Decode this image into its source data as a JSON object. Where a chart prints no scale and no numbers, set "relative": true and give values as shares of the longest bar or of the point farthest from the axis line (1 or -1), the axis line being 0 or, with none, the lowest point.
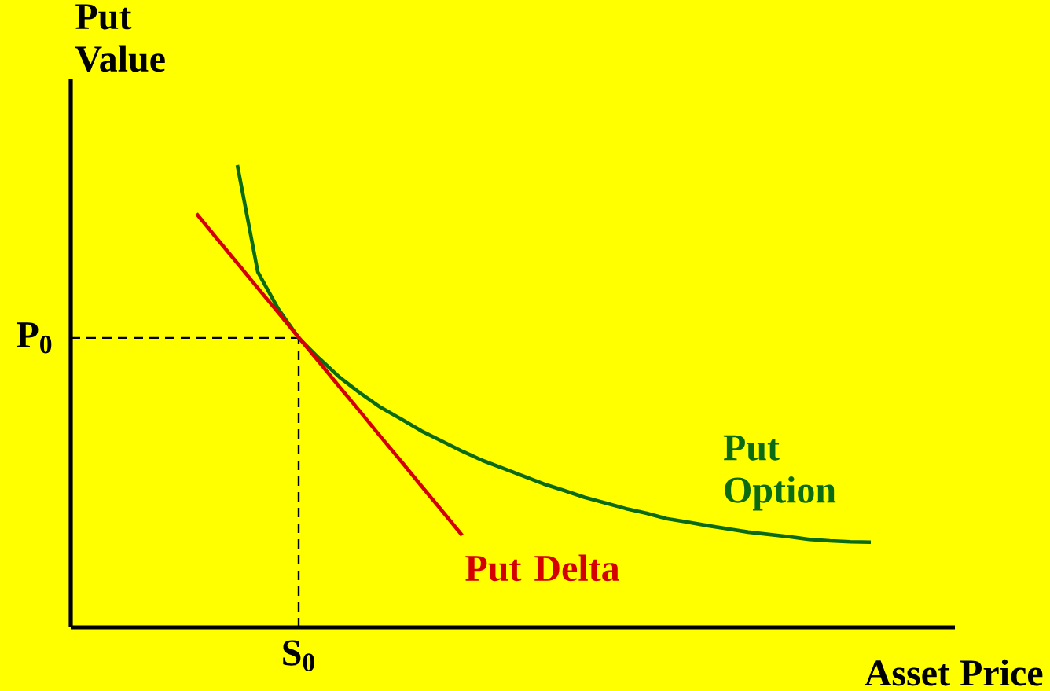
{
  "chart_data": {
    "type": "line",
    "relative": true,
    "xlabel": "Asset Price",
    "ylabel": "Put Value",
    "categories": [
      null,
      null,
      null,
      null,
      null,
      null,
      null,
      null,
      null,
      null,
      null,
      null,
      null,
      null,
      null,
      null,
      null,
      null,
      null,
      null,
      null,
      null,
      null,
      null,
      null,
      null,
      null,
      null,
      null,
      null,
      null,
      null,
      null,
      null
    ],
    "series": [
      {
        "name": "Put Option",
        "color": "#0b6b12",
        "values": [
          null,
          null,
          1.0,
          0.769,
          0.689,
          0.626,
          0.582,
          0.541,
          0.507,
          0.476,
          0.451,
          0.425,
          0.403,
          0.381,
          0.361,
          0.344,
          0.327,
          0.31,
          0.296,
          0.281,
          0.269,
          0.257,
          0.247,
          0.235,
          0.228,
          0.22,
          0.213,
          0.206,
          0.201,
          0.196,
          0.19,
          0.187,
          0.185,
          0.184
        ]
      },
      {
        "name": "Put Delta",
        "color": "#d40000",
        "values": [
          0.895,
          0.841,
          0.788,
          0.734,
          0.681,
          0.627,
          0.574,
          0.52,
          0.467,
          0.413,
          0.36,
          0.306,
          0.253,
          0.199,
          null,
          null,
          null,
          null,
          null,
          null,
          null,
          null,
          null,
          null,
          null,
          null,
          null,
          null,
          null,
          null,
          null,
          null,
          null,
          null
        ]
      }
    ],
    "ref_lines": [
      {
        "axis": "y",
        "value": 0.626,
        "label": "P$_{0}$",
        "line_style": "dashed",
        "color": "#000000"
      }
    ],
    "annotations": [
      "S$_{0}$"
    ],
    "grid": false,
    "legend": false,
    "marker": "none",
    "line_style": "solid"
  }
}
